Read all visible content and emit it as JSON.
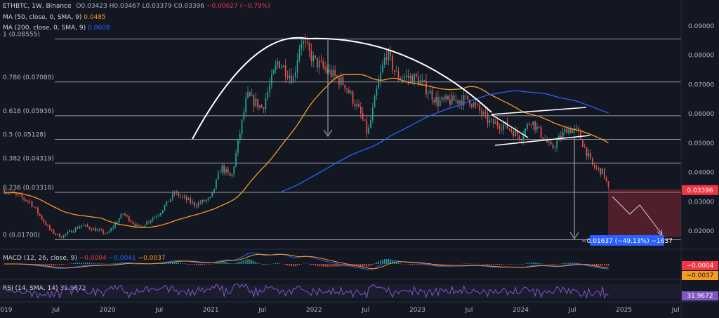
{
  "header": {
    "symbol": "ETHBTC, 1W, Binance",
    "ohlc_o": "O0.03423",
    "ohlc_h": "H0.03467",
    "ohlc_l": "L0.03379",
    "ohlc_c": "C0.03396",
    "change": "−0.00027 (−0.79%)"
  },
  "ma50_legend": {
    "label": "MA (50, close, 0, SMA, 9)",
    "value": "0.0485",
    "color": "#f59a23"
  },
  "ma200_legend": {
    "label": "MA (200, close, 0, SMA, 9)",
    "value": "0.0608",
    "color": "#2962ff"
  },
  "chart_data": {
    "type": "candlestick",
    "price_axis_ticks": [
      "0.09000",
      "0.08000",
      "0.07000",
      "0.06000",
      "0.05000",
      "0.04000",
      "0.03000",
      "0.02000"
    ],
    "ylim": [
      0.0165,
      0.092
    ],
    "time_axis_ticks": [
      "2019",
      "Jul",
      "2020",
      "Jul",
      "2021",
      "Jul",
      "2022",
      "Jul",
      "2023",
      "Jul",
      "2024",
      "Jul",
      "2025",
      "Jul"
    ],
    "current_price": "0.03396",
    "fib_levels": [
      {
        "label": "1 (0.08555)",
        "value": 0.08555
      },
      {
        "label": "0.786 (0.07088)",
        "value": 0.07088
      },
      {
        "label": "0.618 (0.05936)",
        "value": 0.05936
      },
      {
        "label": "0.5 (0.05128)",
        "value": 0.05128
      },
      {
        "label": "0.382 (0.04319)",
        "value": 0.04319
      },
      {
        "label": "0.236 (0.03318)",
        "value": 0.03318
      },
      {
        "label": "0 (0.01700)",
        "value": 0.017
      }
    ],
    "target_label": "−0.01637 (−49.13%) −1637",
    "ma50_series_name": "MA 50",
    "ma200_series_name": "MA 200",
    "macd": {
      "label": "MACD (12, 26, close, 9)",
      "v1": "−0.0004",
      "v2": "−0.0041",
      "v3": "−0.0037",
      "axis_values": [
        "−0.0004",
        "−0.0037"
      ]
    },
    "rsi": {
      "label": "RSI (14, SMA, 14)",
      "value": "31.9672",
      "axis_value": "31.9672"
    }
  },
  "colors": {
    "bg": "#131722",
    "up": "#26a69a",
    "down": "#ef5350",
    "ma50": "#f59a23",
    "ma200": "#2962ff",
    "grid": "#2a2e39",
    "fib": "#9598a1"
  }
}
